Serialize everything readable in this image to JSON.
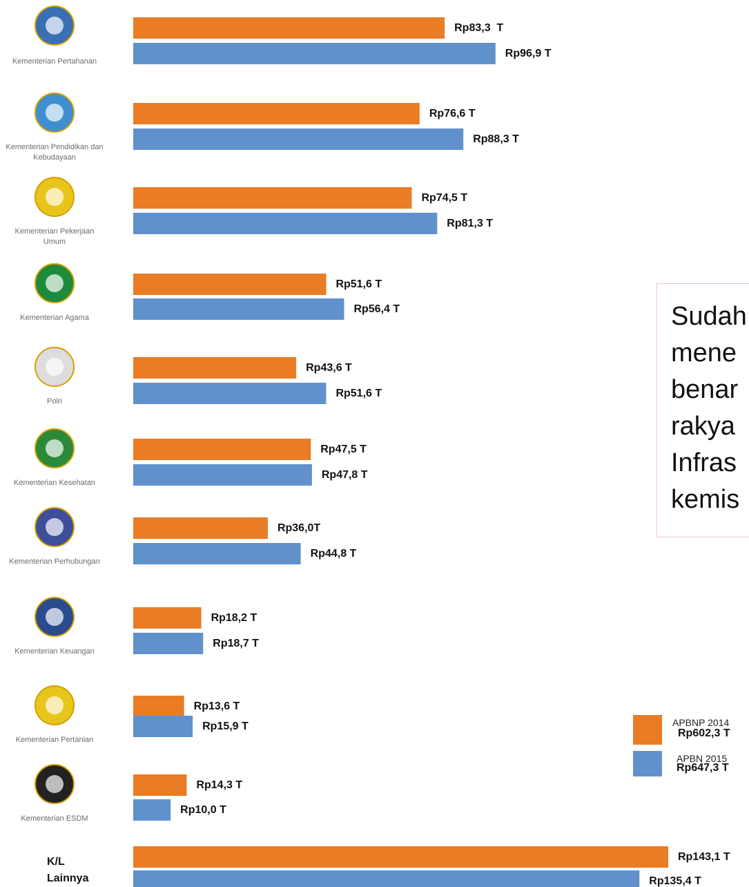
{
  "chart_data": {
    "type": "bar",
    "orientation": "horizontal",
    "categories": [
      "Kementerian Pertahanan",
      "Kementerian Pendidikan dan Kebudayaan",
      "Kementerian Pekerjaan Umum",
      "Kementerian Agama",
      "Polri",
      "Kementerian Kesehatan",
      "Kementerian Perhubungan",
      "Kementerian Keuangan",
      "Kementerian Pertanian",
      "Kementerian ESDM",
      "K/L Lainnya"
    ],
    "series": [
      {
        "name": "APBNP 2014",
        "color": "#e97c24",
        "total_label": "Rp602,3 T",
        "values": [
          83.3,
          76.6,
          74.5,
          51.6,
          43.6,
          47.5,
          36.0,
          18.2,
          13.6,
          14.3,
          143.1
        ],
        "value_labels": [
          "Rp83,3  T",
          "Rp76,6 T",
          "Rp74,5 T",
          "Rp51,6 T",
          "Rp43,6 T",
          "Rp47,5 T",
          "Rp36,0T",
          "Rp18,2 T",
          "Rp13,6 T",
          "Rp14,3 T",
          "Rp143,1 T"
        ]
      },
      {
        "name": "APBN 2015",
        "color": "#6191cc",
        "total_label": "Rp647,3 T",
        "values": [
          96.9,
          88.3,
          81.3,
          56.4,
          51.6,
          47.8,
          44.8,
          18.7,
          15.9,
          10.0,
          135.4
        ],
        "value_labels": [
          "Rp96,9 T",
          "Rp88,3 T",
          "Rp81,3 T",
          "Rp56,4 T",
          "Rp51,6 T",
          "Rp47,8 T",
          "Rp44,8 T",
          "Rp18,7 T",
          "Rp15,9 T",
          "Rp10,0 T",
          "Rp135,4 T"
        ]
      }
    ],
    "annotation_lines": [
      "Sudah",
      "mene",
      "benar",
      "rakya",
      "Infras",
      "kemis"
    ]
  }
}
